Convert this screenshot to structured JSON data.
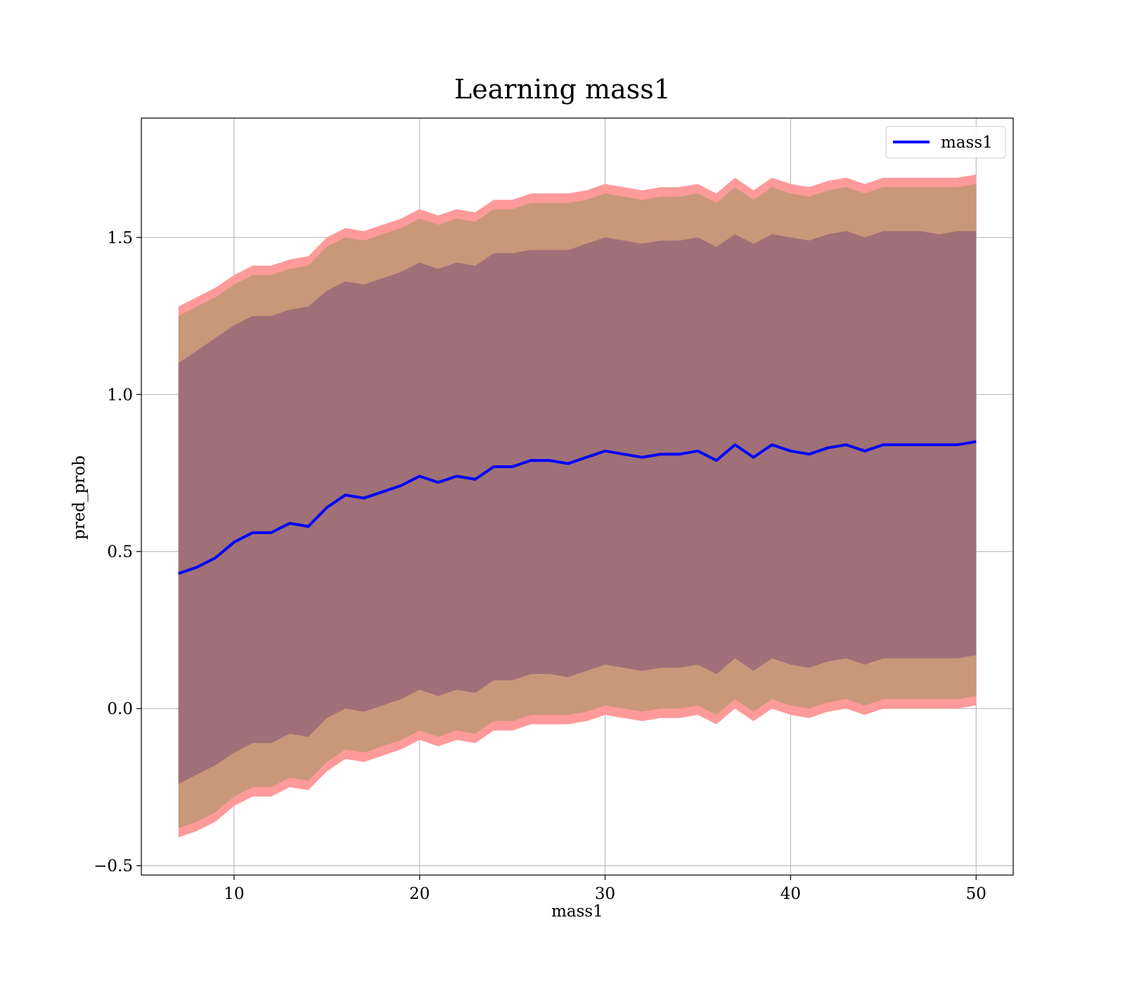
{
  "chart_data": {
    "type": "area",
    "title": "Learning mass1",
    "xlabel": "mass1",
    "ylabel": "pred_prob",
    "xlim": [
      5,
      52
    ],
    "ylim": [
      -0.53,
      1.88
    ],
    "xticks": [
      10,
      20,
      30,
      40,
      50
    ],
    "xtick_labels": [
      "10",
      "20",
      "30",
      "40",
      "50"
    ],
    "yticks": [
      -0.5,
      0.0,
      0.5,
      1.0,
      1.5
    ],
    "ytick_labels": [
      "−0.5",
      "0.0",
      "0.5",
      "1.0",
      "1.5"
    ],
    "grid": true,
    "legend": {
      "placement": "top-right",
      "entries": [
        "mass1"
      ]
    },
    "colors": {
      "line": "#0000ff",
      "band_outer": "#ff9a9a",
      "band_middle": "#c9977a",
      "band_inner": "#a07078"
    },
    "x": [
      7,
      8,
      9,
      10,
      11,
      12,
      13,
      14,
      15,
      16,
      17,
      18,
      19,
      20,
      21,
      22,
      23,
      24,
      25,
      26,
      27,
      28,
      29,
      30,
      31,
      32,
      33,
      34,
      35,
      36,
      37,
      38,
      39,
      40,
      41,
      42,
      43,
      44,
      45,
      46,
      47,
      48,
      49,
      50
    ],
    "series": [
      {
        "name": "mass1",
        "values": [
          0.43,
          0.45,
          0.48,
          0.53,
          0.56,
          0.56,
          0.59,
          0.58,
          0.64,
          0.68,
          0.67,
          0.69,
          0.71,
          0.74,
          0.72,
          0.74,
          0.73,
          0.77,
          0.77,
          0.79,
          0.79,
          0.78,
          0.8,
          0.82,
          0.81,
          0.8,
          0.81,
          0.81,
          0.82,
          0.79,
          0.84,
          0.8,
          0.84,
          0.82,
          0.81,
          0.83,
          0.84,
          0.82,
          0.84,
          0.84,
          0.84,
          0.84,
          0.84,
          0.85
        ]
      }
    ],
    "bands": [
      {
        "upper": [
          1.28,
          1.31,
          1.34,
          1.38,
          1.41,
          1.41,
          1.43,
          1.44,
          1.5,
          1.53,
          1.52,
          1.54,
          1.56,
          1.59,
          1.57,
          1.59,
          1.58,
          1.62,
          1.62,
          1.64,
          1.64,
          1.64,
          1.65,
          1.67,
          1.66,
          1.65,
          1.66,
          1.66,
          1.67,
          1.64,
          1.69,
          1.65,
          1.69,
          1.67,
          1.66,
          1.68,
          1.69,
          1.67,
          1.69,
          1.69,
          1.69,
          1.69,
          1.69,
          1.7
        ],
        "lower": [
          -0.41,
          -0.39,
          -0.36,
          -0.31,
          -0.28,
          -0.28,
          -0.25,
          -0.26,
          -0.2,
          -0.16,
          -0.17,
          -0.15,
          -0.13,
          -0.1,
          -0.12,
          -0.1,
          -0.11,
          -0.07,
          -0.07,
          -0.05,
          -0.05,
          -0.05,
          -0.04,
          -0.02,
          -0.03,
          -0.04,
          -0.03,
          -0.03,
          -0.02,
          -0.05,
          0.0,
          -0.04,
          0.0,
          -0.02,
          -0.03,
          -0.01,
          0.0,
          -0.02,
          0.0,
          0.0,
          0.0,
          0.0,
          0.0,
          0.01
        ]
      },
      {
        "upper": [
          1.25,
          1.28,
          1.31,
          1.35,
          1.38,
          1.38,
          1.4,
          1.41,
          1.47,
          1.5,
          1.49,
          1.51,
          1.53,
          1.56,
          1.54,
          1.56,
          1.55,
          1.59,
          1.59,
          1.61,
          1.61,
          1.61,
          1.62,
          1.64,
          1.63,
          1.62,
          1.63,
          1.63,
          1.64,
          1.61,
          1.66,
          1.62,
          1.66,
          1.64,
          1.63,
          1.65,
          1.66,
          1.64,
          1.66,
          1.66,
          1.66,
          1.66,
          1.66,
          1.67
        ],
        "lower": [
          -0.38,
          -0.36,
          -0.33,
          -0.28,
          -0.25,
          -0.25,
          -0.22,
          -0.23,
          -0.17,
          -0.13,
          -0.14,
          -0.12,
          -0.1,
          -0.07,
          -0.09,
          -0.07,
          -0.08,
          -0.04,
          -0.04,
          -0.02,
          -0.02,
          -0.02,
          -0.01,
          0.01,
          0.0,
          -0.01,
          0.0,
          0.0,
          0.01,
          -0.02,
          0.03,
          -0.01,
          0.03,
          0.01,
          0.0,
          0.02,
          0.03,
          0.01,
          0.03,
          0.03,
          0.03,
          0.03,
          0.03,
          0.04
        ]
      },
      {
        "upper": [
          1.1,
          1.14,
          1.18,
          1.22,
          1.25,
          1.25,
          1.27,
          1.28,
          1.33,
          1.36,
          1.35,
          1.37,
          1.39,
          1.42,
          1.4,
          1.42,
          1.41,
          1.45,
          1.45,
          1.46,
          1.46,
          1.46,
          1.48,
          1.5,
          1.49,
          1.48,
          1.49,
          1.49,
          1.5,
          1.47,
          1.51,
          1.48,
          1.51,
          1.5,
          1.49,
          1.51,
          1.52,
          1.5,
          1.52,
          1.52,
          1.52,
          1.51,
          1.52,
          1.52
        ],
        "lower": [
          -0.24,
          -0.21,
          -0.18,
          -0.14,
          -0.11,
          -0.11,
          -0.08,
          -0.09,
          -0.03,
          0.0,
          -0.01,
          0.01,
          0.03,
          0.06,
          0.04,
          0.06,
          0.05,
          0.09,
          0.09,
          0.11,
          0.11,
          0.1,
          0.12,
          0.14,
          0.13,
          0.12,
          0.13,
          0.13,
          0.14,
          0.11,
          0.16,
          0.12,
          0.16,
          0.14,
          0.13,
          0.15,
          0.16,
          0.14,
          0.16,
          0.16,
          0.16,
          0.16,
          0.16,
          0.17
        ]
      }
    ]
  }
}
